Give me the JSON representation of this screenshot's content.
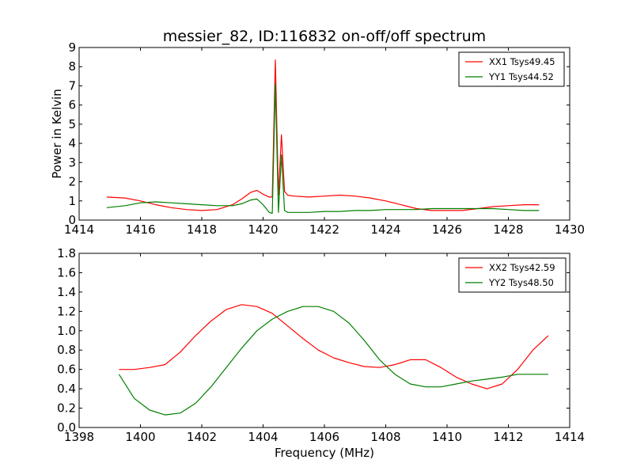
{
  "chart_data": [
    {
      "type": "line",
      "title": "messier_82, ID:116832 on-off/off spectrum",
      "xlabel": "",
      "ylabel": "Power in Kelvin",
      "xlim": [
        1414,
        1430
      ],
      "ylim": [
        0,
        9
      ],
      "x_ticks": [
        "1414",
        "1416",
        "1418",
        "1420",
        "1422",
        "1424",
        "1426",
        "1428",
        "1430"
      ],
      "y_ticks": [
        "0",
        "1",
        "2",
        "3",
        "4",
        "5",
        "6",
        "7",
        "8",
        "9"
      ],
      "grid": false,
      "legend_position": "top-right",
      "x": [
        1414.9,
        1415.5,
        1416.0,
        1416.5,
        1417.0,
        1417.5,
        1418.0,
        1418.5,
        1419.0,
        1419.3,
        1419.6,
        1419.8,
        1420.0,
        1420.2,
        1420.3,
        1420.4,
        1420.5,
        1420.6,
        1420.7,
        1420.8,
        1421.0,
        1421.5,
        1422.0,
        1422.5,
        1423.0,
        1423.5,
        1424.0,
        1424.5,
        1425.0,
        1425.5,
        1426.0,
        1426.5,
        1427.0,
        1427.5,
        1428.0,
        1428.5,
        1429.0
      ],
      "series": [
        {
          "name": "XX1 Tsys49.45",
          "color": "#ff0000",
          "values": [
            1.2,
            1.15,
            1.0,
            0.8,
            0.65,
            0.55,
            0.5,
            0.55,
            0.8,
            1.1,
            1.45,
            1.55,
            1.35,
            1.2,
            1.2,
            8.35,
            1.3,
            4.45,
            1.5,
            1.3,
            1.25,
            1.2,
            1.25,
            1.3,
            1.25,
            1.15,
            1.0,
            0.8,
            0.6,
            0.5,
            0.5,
            0.5,
            0.6,
            0.7,
            0.75,
            0.8,
            0.8
          ]
        },
        {
          "name": "YY1 Tsys44.52",
          "color": "#007f00",
          "values": [
            0.65,
            0.75,
            0.9,
            0.95,
            0.9,
            0.85,
            0.8,
            0.75,
            0.75,
            0.85,
            1.05,
            1.1,
            0.8,
            0.4,
            0.35,
            7.1,
            0.4,
            3.4,
            0.5,
            0.4,
            0.4,
            0.4,
            0.45,
            0.45,
            0.5,
            0.5,
            0.55,
            0.55,
            0.55,
            0.6,
            0.6,
            0.6,
            0.6,
            0.6,
            0.55,
            0.5,
            0.5
          ]
        }
      ]
    },
    {
      "type": "line",
      "title": "",
      "xlabel": "Frequency (MHz)",
      "ylabel": "",
      "xlim": [
        1398,
        1414
      ],
      "ylim": [
        0,
        1.8
      ],
      "x_ticks": [
        "1398",
        "1400",
        "1402",
        "1404",
        "1406",
        "1408",
        "1410",
        "1412",
        "1414"
      ],
      "y_ticks": [
        "0.0",
        "0.2",
        "0.4",
        "0.6",
        "0.8",
        "1.0",
        "1.2",
        "1.4",
        "1.6",
        "1.8"
      ],
      "grid": false,
      "legend_position": "top-right",
      "x": [
        1399.3,
        1399.8,
        1400.3,
        1400.8,
        1401.3,
        1401.8,
        1402.3,
        1402.8,
        1403.3,
        1403.8,
        1404.3,
        1404.8,
        1405.3,
        1405.8,
        1406.3,
        1406.8,
        1407.3,
        1407.8,
        1408.3,
        1408.8,
        1409.3,
        1409.8,
        1410.3,
        1410.8,
        1411.3,
        1411.8,
        1412.3,
        1412.8,
        1413.3
      ],
      "series": [
        {
          "name": "XX2 Tsys42.59",
          "color": "#ff0000",
          "values": [
            0.6,
            0.6,
            0.62,
            0.65,
            0.78,
            0.95,
            1.1,
            1.22,
            1.27,
            1.25,
            1.18,
            1.05,
            0.92,
            0.8,
            0.72,
            0.67,
            0.63,
            0.62,
            0.65,
            0.7,
            0.7,
            0.62,
            0.52,
            0.45,
            0.4,
            0.45,
            0.6,
            0.8,
            0.95
          ]
        },
        {
          "name": "YY2 Tsys48.50",
          "color": "#007f00",
          "values": [
            0.55,
            0.3,
            0.18,
            0.13,
            0.15,
            0.25,
            0.42,
            0.62,
            0.82,
            1.0,
            1.12,
            1.2,
            1.25,
            1.25,
            1.2,
            1.08,
            0.9,
            0.7,
            0.55,
            0.45,
            0.42,
            0.42,
            0.45,
            0.48,
            0.5,
            0.52,
            0.55,
            0.55,
            0.55
          ]
        }
      ]
    }
  ]
}
